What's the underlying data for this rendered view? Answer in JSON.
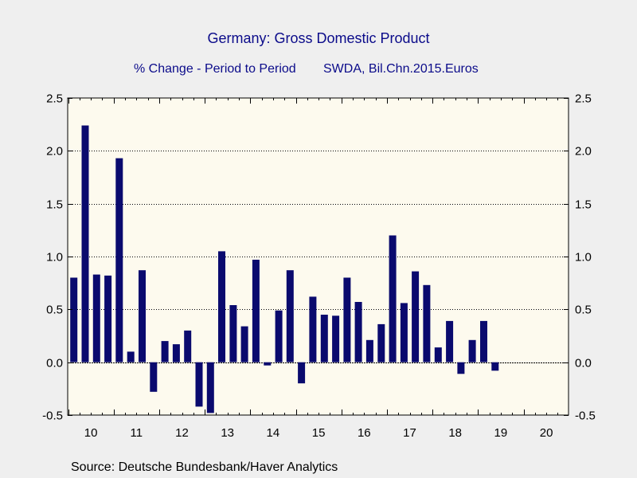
{
  "title": "Germany: Gross Domestic Product",
  "subtitle_left": "% Change - Period to Period",
  "subtitle_right": "SWDA, Bil.Chn.2015.Euros",
  "source": "Source:  Deutsche Bundesbank/Haver Analytics",
  "colors": {
    "bar": "#0a0a6e",
    "plot_bg": "#fdfaee",
    "page_bg": "#efefef",
    "text_title": "#0b0b8a",
    "grid": "#000000"
  },
  "chart_data": {
    "type": "bar",
    "grid": true,
    "ylim": [
      -0.5,
      2.5
    ],
    "yticks": [
      -0.5,
      0.0,
      0.5,
      1.0,
      1.5,
      2.0,
      2.5
    ],
    "ytick_labels": [
      "-0.5",
      "0.0",
      "0.5",
      "1.0",
      "1.5",
      "2.0",
      "2.5"
    ],
    "xtick_labels": [
      "10",
      "11",
      "12",
      "13",
      "14",
      "15",
      "16",
      "17",
      "18",
      "19",
      "20"
    ],
    "periods": [
      "2010Q1",
      "2010Q2",
      "2010Q3",
      "2010Q4",
      "2011Q1",
      "2011Q2",
      "2011Q3",
      "2011Q4",
      "2012Q1",
      "2012Q2",
      "2012Q3",
      "2012Q4",
      "2013Q1",
      "2013Q2",
      "2013Q3",
      "2013Q4",
      "2014Q1",
      "2014Q2",
      "2014Q3",
      "2014Q4",
      "2015Q1",
      "2015Q2",
      "2015Q3",
      "2015Q4",
      "2016Q1",
      "2016Q2",
      "2016Q3",
      "2016Q4",
      "2017Q1",
      "2017Q2",
      "2017Q3",
      "2017Q4",
      "2018Q1",
      "2018Q2",
      "2018Q3",
      "2018Q4",
      "2019Q1",
      "2019Q2"
    ],
    "values": [
      0.8,
      2.24,
      0.83,
      0.82,
      1.93,
      0.1,
      0.87,
      -0.28,
      0.2,
      0.17,
      0.3,
      -0.42,
      -0.48,
      1.05,
      0.54,
      0.34,
      0.97,
      -0.03,
      0.49,
      0.87,
      -0.2,
      0.62,
      0.45,
      0.44,
      0.8,
      0.57,
      0.21,
      0.36,
      1.2,
      0.56,
      0.86,
      0.73,
      0.14,
      0.39,
      -0.11,
      0.21,
      0.39,
      -0.08
    ]
  }
}
